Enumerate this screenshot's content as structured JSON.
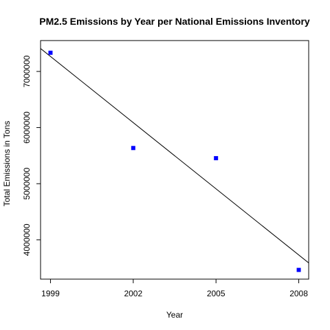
{
  "chart_data": {
    "type": "scatter",
    "title": "PM2.5 Emissions by Year per National Emissions Inventory",
    "xlabel": "Year",
    "ylabel": "Total Emissions in Tons",
    "x_ticks": [
      1999,
      2002,
      2005,
      2008
    ],
    "y_ticks": [
      4000000,
      5000000,
      6000000,
      7000000
    ],
    "y_tick_labels": [
      "4000000",
      "5000000",
      "6000000",
      "7000000"
    ],
    "xlim": [
      1998.64,
      2008.36
    ],
    "ylim": [
      3300000,
      7550000
    ],
    "points": [
      {
        "x": 1999,
        "y": 7332967
      },
      {
        "x": 2002,
        "y": 5635780
      },
      {
        "x": 2005,
        "y": 5454703
      },
      {
        "x": 2008,
        "y": 3464206
      }
    ],
    "trendline": {
      "slope": -393000,
      "intercept_at_1999": 7267000
    },
    "point_color": "#0000ff",
    "line_color": "#000000",
    "grid": false
  }
}
